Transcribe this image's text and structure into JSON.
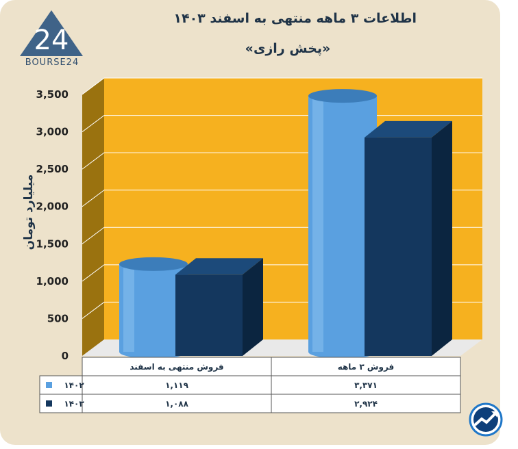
{
  "logo": {
    "text": "BOURSE24",
    "mark": "24"
  },
  "header": {
    "title": "اطلاعات ۳ ماهه منتهی به اسفند ۱۴۰۳",
    "subtitle": "«پخش رازی»"
  },
  "colors": {
    "series_1402": "#5aa0e0",
    "series_1403": "#14375e",
    "plot_back": "#f6b11f",
    "plot_side": "#9a720f"
  },
  "chart_data": {
    "type": "bar",
    "title": "اطلاعات ۳ ماهه منتهی به اسفند ۱۴۰۳",
    "subtitle": "«پخش رازی»",
    "ylabel": "میلیارد تومان",
    "ylim": [
      0,
      3500
    ],
    "yticks": [
      0,
      500,
      1000,
      1500,
      2000,
      2500,
      3000,
      3500
    ],
    "ytick_labels": [
      "0",
      "500",
      "1,000",
      "1,500",
      "2,000",
      "2,500",
      "3,000",
      "3,500"
    ],
    "categories": [
      "فروش منتهی به  اسفند",
      "فروش ۳  ماهه"
    ],
    "series": [
      {
        "name": "۱۴۰۲",
        "values": [
          1119,
          3371
        ],
        "labels": [
          "۱,۱۱۹",
          "۳,۳۷۱"
        ],
        "shape": "cylinder"
      },
      {
        "name": "۱۴۰۳",
        "values": [
          1088,
          2924
        ],
        "labels": [
          "۱,۰۸۸",
          "۲,۹۲۴"
        ],
        "shape": "box"
      }
    ],
    "grid": true,
    "legend": "table-left"
  },
  "badge": {
    "icon": "trend-arrow-icon"
  }
}
